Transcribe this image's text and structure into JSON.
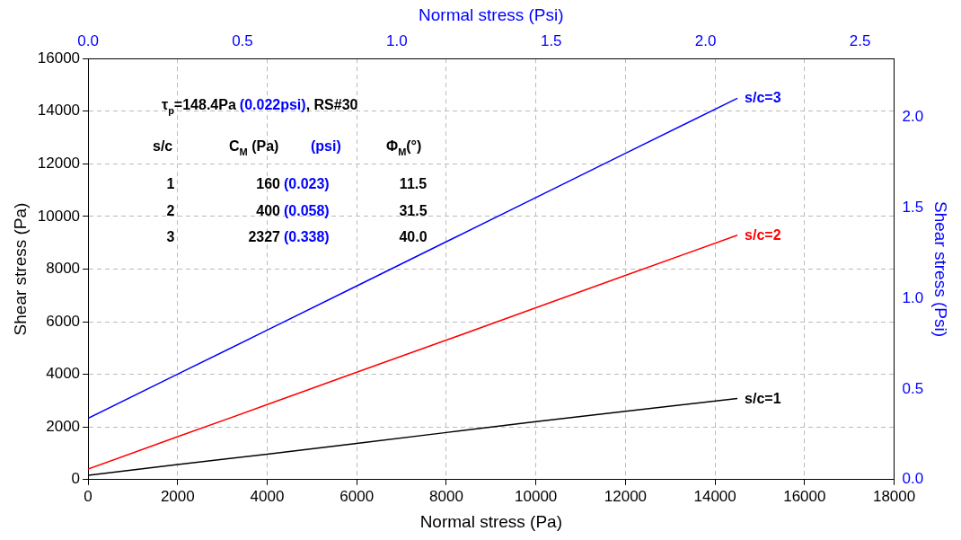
{
  "chart_data": {
    "type": "line",
    "xlabel": "Normal stress (Pa)",
    "ylabel": "Shear stress (Pa)",
    "x2label": "Normal stress (Psi)",
    "y2label": "Shear stress (Psi)",
    "x": [
      0,
      2000,
      4000,
      6000,
      8000,
      10000,
      12000,
      14500
    ],
    "series": [
      {
        "name": "s/c=1",
        "color": "#000000",
        "values": [
          160,
          570,
          970,
          1380,
          1790,
          2200,
          2600,
          3080
        ]
      },
      {
        "name": "s/c=2",
        "color": "#ff0000",
        "values": [
          400,
          1630,
          2850,
          4080,
          5300,
          6530,
          7760,
          9290
        ]
      },
      {
        "name": "s/c=3",
        "color": "#0000ff",
        "values": [
          2330,
          4010,
          5680,
          7360,
          9040,
          10720,
          12400,
          14490
        ]
      }
    ],
    "xlim": [
      0,
      18000
    ],
    "xticks": [
      0,
      2000,
      4000,
      6000,
      8000,
      10000,
      12000,
      14000,
      16000,
      18000
    ],
    "ylim": [
      0,
      16000
    ],
    "yticks": [
      0,
      2000,
      4000,
      6000,
      8000,
      10000,
      12000,
      14000,
      16000
    ],
    "x2lim": [
      0,
      2.6107
    ],
    "x2ticks": [
      {
        "value": 0,
        "label": "0.0"
      },
      {
        "value": 0.5,
        "label": "0.5"
      },
      {
        "value": 1,
        "label": "1.0"
      },
      {
        "value": 1.5,
        "label": "1.5"
      },
      {
        "value": 2,
        "label": "2.0"
      },
      {
        "value": 2.5,
        "label": "2.5"
      }
    ],
    "y2lim": [
      0,
      2.3206
    ],
    "y2ticks": [
      {
        "value": 0,
        "label": "0.0"
      },
      {
        "value": 0.5,
        "label": "0.5"
      },
      {
        "value": 1,
        "label": "1.0"
      },
      {
        "value": 1.5,
        "label": "1.5"
      },
      {
        "value": 2,
        "label": "2.0"
      }
    ],
    "grid": true,
    "legend": false,
    "marker": "none",
    "line_style": "solid",
    "annotations": [
      "τ$_{p}$=148.4Pa",
      "(0.022psi)",
      ", RS#30",
      "s/c",
      "C$_{M}$ (Pa)",
      "(psi)",
      "Φ$_{M}$(°)",
      "1",
      "160",
      "(0.023)",
      "11.5",
      "2",
      "400",
      "(0.058)",
      "31.5",
      "3",
      "2327",
      "(0.338)",
      "40.0"
    ]
  }
}
